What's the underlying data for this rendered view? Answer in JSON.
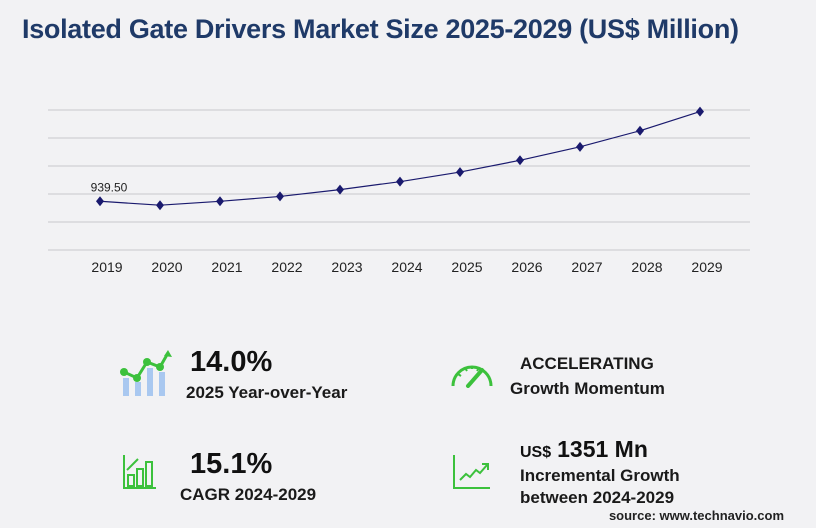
{
  "title": "Isolated Gate Drivers Market Size 2025-2029 (US$ Million)",
  "chart_data": {
    "type": "line",
    "title": "Isolated Gate Drivers Market Size 2025-2029 (US$ Million)",
    "categories": [
      "2019",
      "2020",
      "2021",
      "2022",
      "2023",
      "2024",
      "2025",
      "2026",
      "2027",
      "2028",
      "2029"
    ],
    "values": [
      939.5,
      864,
      939,
      1033,
      1165,
      1318,
      1503,
      1730,
      1990,
      2300,
      2669
    ],
    "data_labels": [
      {
        "category": "2019",
        "text": "939.50"
      }
    ],
    "ylim": [
      0,
      2700
    ],
    "grid": true,
    "line_color": "#1a1a6e",
    "marker": "diamond"
  },
  "stats": {
    "yoy_value": "14.0%",
    "yoy_label": "2025 Year-over-Year",
    "momentum_value": "ACCELERATING",
    "momentum_label": "Growth Momentum",
    "cagr_value": "15.1%",
    "cagr_label": "CAGR 2024-2029",
    "incr_prefix": "US$",
    "incr_value": "1351 Mn",
    "incr_label1": "Incremental Growth",
    "incr_label2": "between 2024-2029"
  },
  "source": "source: www.technavio.com",
  "colors": {
    "title": "#1f3a68",
    "accent_green": "#3cc13c",
    "bar_blue": "#a9c8f0"
  }
}
